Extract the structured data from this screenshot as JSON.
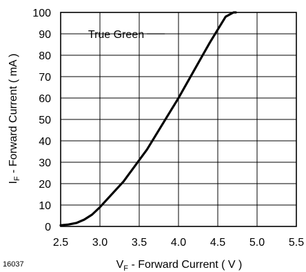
{
  "figure_id": "16037",
  "chart_data": {
    "type": "line",
    "title": "",
    "xlabel": {
      "main": "V",
      "sub": "F",
      "rest": " - Forward Current ( V )"
    },
    "ylabel": {
      "main": "I",
      "sub": "F",
      "rest": " - Forward Current ( mA )"
    },
    "xlim": [
      2.5,
      5.5
    ],
    "ylim": [
      0,
      100
    ],
    "xticks": [
      "2.5",
      "3.0",
      "3.5",
      "4.0",
      "4.5",
      "5.0",
      "5.5"
    ],
    "yticks": [
      "0",
      "10",
      "20",
      "30",
      "40",
      "50",
      "60",
      "70",
      "80",
      "90",
      "100"
    ],
    "grid": true,
    "series": [
      {
        "name": "True Green",
        "color": "#000000",
        "x": [
          2.5,
          2.6,
          2.7,
          2.8,
          2.9,
          3.0,
          3.1,
          3.2,
          3.3,
          3.4,
          3.5,
          3.6,
          3.7,
          3.8,
          3.9,
          4.0,
          4.1,
          4.2,
          4.3,
          4.4,
          4.5,
          4.6,
          4.7,
          4.73
        ],
        "y": [
          0.5,
          0.9,
          1.6,
          3.2,
          5.5,
          9.0,
          13.0,
          17.0,
          21.0,
          26.0,
          31.0,
          36.0,
          42.0,
          48.0,
          54.0,
          60.0,
          66.5,
          73.0,
          79.5,
          86.0,
          92.0,
          98.0,
          100.0,
          100.0
        ]
      }
    ],
    "annotation": {
      "text": "True Green",
      "x": 2.85,
      "y": 90
    }
  }
}
